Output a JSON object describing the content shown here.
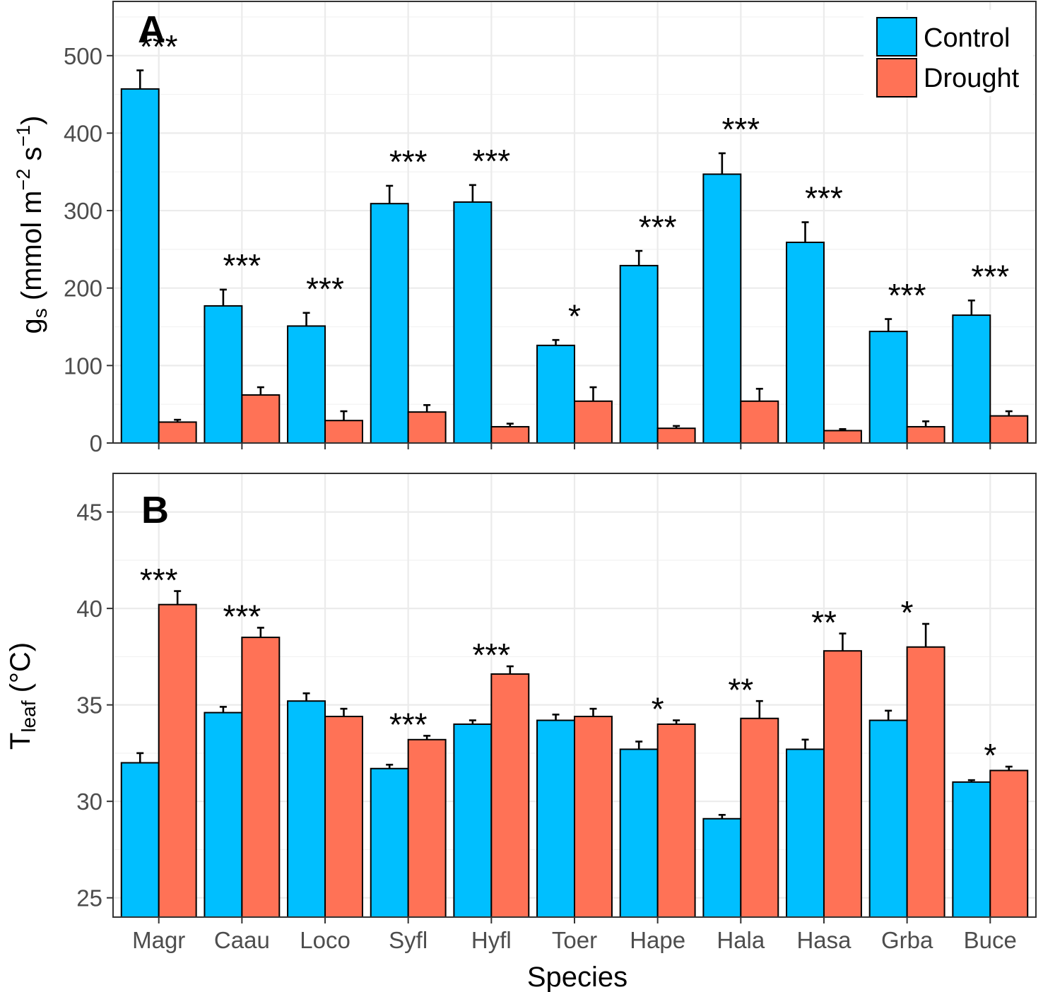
{
  "chart_data": [
    {
      "type": "bar",
      "panel_label": "A",
      "xlabel": "",
      "ylabel": {
        "main": "g",
        "sub": "s",
        "units_prefix": " (mmol m",
        "exp1": "−2",
        "mid": " s",
        "exp2": "−1",
        "units_suffix": ")"
      },
      "ylim": [
        0,
        570
      ],
      "yticks": [
        0,
        100,
        200,
        300,
        400,
        500
      ],
      "categories": [
        "Magr",
        "Caau",
        "Loco",
        "Syfl",
        "Hyfl",
        "Toer",
        "Hape",
        "Hala",
        "Hasa",
        "Grba",
        "Buce"
      ],
      "series": [
        {
          "name": "Control",
          "color": "#00BFFF",
          "values": [
            457,
            177,
            151,
            309,
            311,
            126,
            229,
            347,
            259,
            144,
            165
          ],
          "errors": [
            24,
            21,
            17,
            23,
            22,
            7,
            19,
            27,
            26,
            16,
            19
          ]
        },
        {
          "name": "Drought",
          "color": "#FF7256",
          "values": [
            27,
            62,
            29,
            40,
            21,
            54,
            19,
            54,
            16,
            21,
            35
          ],
          "errors": [
            3,
            10,
            12,
            9,
            4,
            18,
            3,
            16,
            2,
            7,
            6
          ]
        }
      ],
      "significance": [
        "***",
        "***",
        "***",
        "***",
        "***",
        "*",
        "***",
        "***",
        "***",
        "***",
        "***"
      ],
      "legend": {
        "position": "top-right",
        "entries": [
          "Control",
          "Drought"
        ]
      }
    },
    {
      "type": "bar",
      "panel_label": "B",
      "xlabel": "Species",
      "ylabel": {
        "main": "T",
        "sub": "leaf",
        "units": " (°C)"
      },
      "ylim": [
        24,
        47
      ],
      "yticks": [
        25,
        30,
        35,
        40,
        45
      ],
      "categories": [
        "Magr",
        "Caau",
        "Loco",
        "Syfl",
        "Hyfl",
        "Toer",
        "Hape",
        "Hala",
        "Hasa",
        "Grba",
        "Buce"
      ],
      "series": [
        {
          "name": "Control",
          "color": "#00BFFF",
          "values": [
            32.0,
            34.6,
            35.2,
            31.7,
            34.0,
            34.2,
            32.7,
            29.1,
            32.7,
            34.2,
            31.0
          ],
          "errors": [
            0.5,
            0.3,
            0.4,
            0.2,
            0.2,
            0.3,
            0.4,
            0.2,
            0.5,
            0.5,
            0.1
          ]
        },
        {
          "name": "Drought",
          "color": "#FF7256",
          "values": [
            40.2,
            38.5,
            34.4,
            33.2,
            36.6,
            34.4,
            34.0,
            34.3,
            37.8,
            38.0,
            31.6
          ],
          "errors": [
            0.7,
            0.5,
            0.4,
            0.2,
            0.4,
            0.4,
            0.2,
            0.9,
            0.9,
            1.2,
            0.2
          ]
        }
      ],
      "significance": [
        "***",
        "***",
        "",
        "***",
        "***",
        "",
        "*",
        "**",
        "**",
        "*",
        "*"
      ]
    }
  ]
}
